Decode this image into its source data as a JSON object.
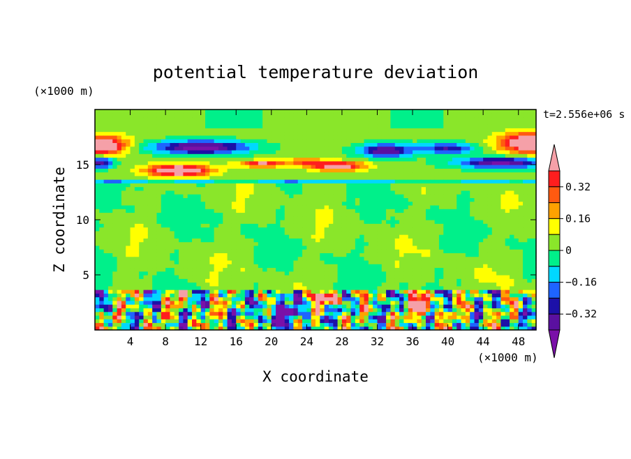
{
  "chart_data": {
    "type": "heatmap",
    "title": "potential temperature deviation",
    "xlabel": "X coordinate",
    "ylabel": "Z coordinate",
    "x_unit": "(×1000 m)",
    "y_unit": "(×1000 m)",
    "time_label": "t=2.556e+06 s",
    "xlim": [
      0,
      50
    ],
    "ylim": [
      0,
      20
    ],
    "x_ticks": [
      4,
      8,
      12,
      16,
      20,
      24,
      28,
      32,
      36,
      40,
      44,
      48
    ],
    "y_ticks": [
      5,
      10,
      15
    ],
    "colorbar": {
      "levels": [
        -0.4,
        -0.32,
        -0.24,
        -0.16,
        -0.08,
        0,
        0.08,
        0.16,
        0.24,
        0.32,
        0.4
      ],
      "tick_labels": [
        "0.32",
        "0.16",
        "0",
        "−0.16",
        "−0.32"
      ],
      "tick_values": [
        0.32,
        0.16,
        0,
        -0.16,
        -0.32
      ],
      "colors": [
        "#7a10a8",
        "#5a10a0",
        "#1c10a8",
        "#1e64ff",
        "#00d8ff",
        "#00f08a",
        "#8ae62a",
        "#ffff00",
        "#ffa200",
        "#ff5a10",
        "#ff1e1e",
        "#f5a0a8"
      ],
      "extend": "both"
    },
    "layers": [
      {
        "z_range": [
          0,
          3.6
        ],
        "pattern": "mixed convective cells, values from below -0.40 to above 0.40"
      },
      {
        "z_range": [
          3.6,
          13.8
        ],
        "pattern": "near zero, alternating 0 to 0.08 and -0.08 to 0"
      },
      {
        "z_range": [
          13.8,
          15.7
        ],
        "pattern": "strong positive lenses up to above 0.40 near x = 4–14, 24–30"
      },
      {
        "z_range": [
          14.8,
          17.8
        ],
        "pattern": "negative bands down to below -0.32 near x = 6–18, 31–36, 38–50"
      },
      {
        "z_range": [
          16,
          18
        ],
        "pattern": "positive edges above 0.40 near x = 0–3 and 45–50"
      },
      {
        "z_range": [
          17.8,
          20
        ],
        "pattern": "near zero to 0.08"
      }
    ]
  }
}
